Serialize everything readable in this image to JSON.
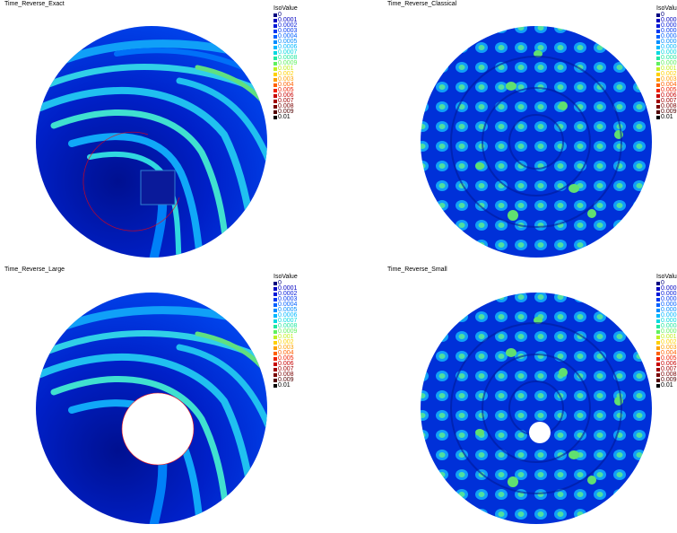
{
  "panels": [
    {
      "title": "Time_Reverse_Exact"
    },
    {
      "title": "Time_Reverse_Classical"
    },
    {
      "title": "Time_Reverse_Large"
    },
    {
      "title": "Time_Reverse_Small"
    }
  ],
  "legend": {
    "title": "IsoValue",
    "title_short": "IsoValu",
    "levels": [
      {
        "label": "0",
        "color": "#00007f"
      },
      {
        "label": "0.0001",
        "color": "#0000bf"
      },
      {
        "label": "0.0002",
        "color": "#0018d8"
      },
      {
        "label": "0.0003",
        "color": "#0038f0"
      },
      {
        "label": "0.0004",
        "color": "#0060ff"
      },
      {
        "label": "0.0005",
        "color": "#008cff"
      },
      {
        "label": "0.0006",
        "color": "#00b8ff"
      },
      {
        "label": "0.0007",
        "color": "#00d8e0"
      },
      {
        "label": "0.0008",
        "color": "#20e8a0"
      },
      {
        "label": "0.0009",
        "color": "#60f060"
      },
      {
        "label": "0.001",
        "color": "#c0f020"
      },
      {
        "label": "0.002",
        "color": "#ffd000"
      },
      {
        "label": "0.003",
        "color": "#ffa000"
      },
      {
        "label": "0.004",
        "color": "#ff6000"
      },
      {
        "label": "0.005",
        "color": "#f02000"
      },
      {
        "label": "0.006",
        "color": "#c80000"
      },
      {
        "label": "0.007",
        "color": "#a00000"
      },
      {
        "label": "0.008",
        "color": "#780000"
      },
      {
        "label": "0.009",
        "color": "#500000"
      },
      {
        "label": "0.01",
        "color": "#000000"
      }
    ]
  },
  "field_colors": {
    "deep": "#000c8c",
    "dark": "#0018b8",
    "mid": "#0040e8",
    "light": "#0090f8",
    "cyan": "#20d0e8",
    "green": "#60e060",
    "hole": "#ffffff",
    "scatterer_outline": "#ff0000"
  }
}
